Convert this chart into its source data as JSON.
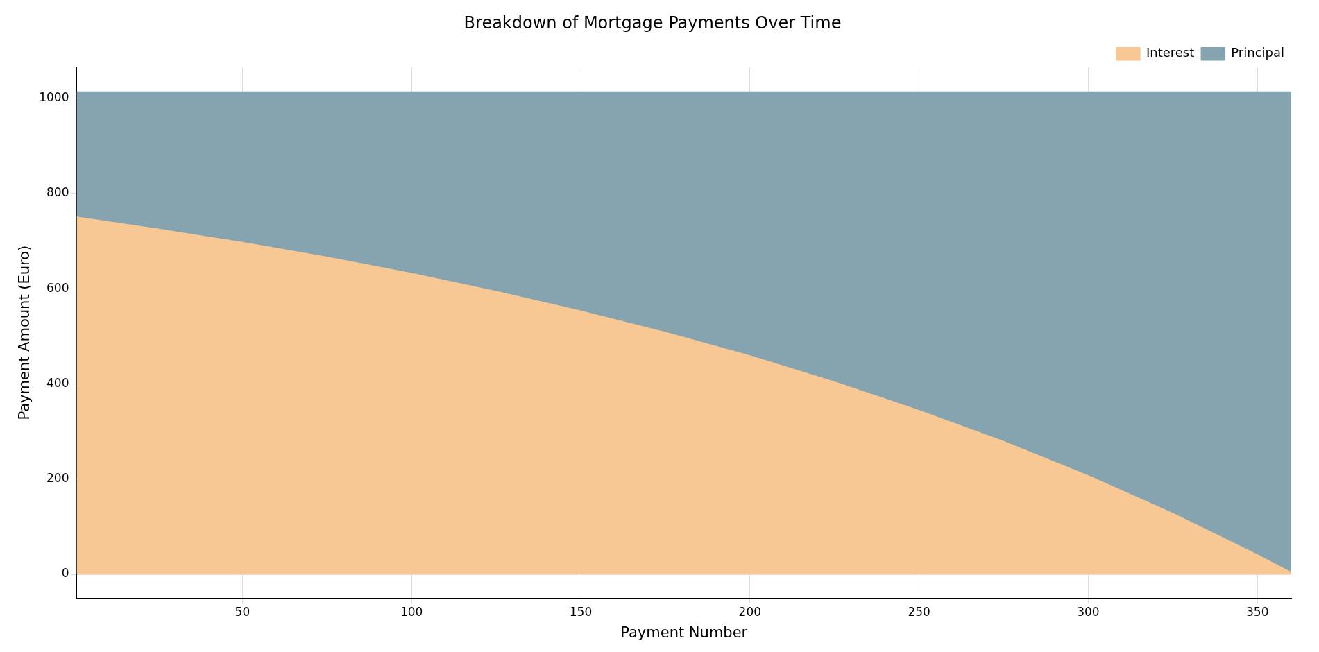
{
  "chart_data": {
    "type": "area",
    "title": "Breakdown of Mortgage Payments Over Time",
    "xlabel": "Payment Number",
    "ylabel": "Payment Amount (Euro)",
    "x": [
      1,
      25,
      50,
      75,
      100,
      125,
      150,
      175,
      200,
      225,
      250,
      275,
      300,
      325,
      350,
      360
    ],
    "series": [
      {
        "name": "Interest",
        "color": "#f7c894",
        "values": [
          750,
          725,
          697,
          666,
          632,
          594,
          553,
          508,
          459,
          404,
          344,
          279,
          207,
          128,
          41,
          4
        ]
      },
      {
        "name": "Principal",
        "color": "#86a4b0",
        "values": [
          263,
          288,
          316,
          347,
          381,
          419,
          460,
          505,
          554,
          609,
          669,
          734,
          806,
          885,
          972,
          1009
        ]
      }
    ],
    "stacked": true,
    "xlim": [
      1,
      360
    ],
    "xticks": [
      50,
      100,
      150,
      200,
      250,
      300,
      350
    ],
    "ylim": [
      -50,
      1065
    ],
    "yticks": [
      0,
      200,
      400,
      600,
      800,
      1000
    ],
    "grid": true,
    "legend": "top right"
  }
}
